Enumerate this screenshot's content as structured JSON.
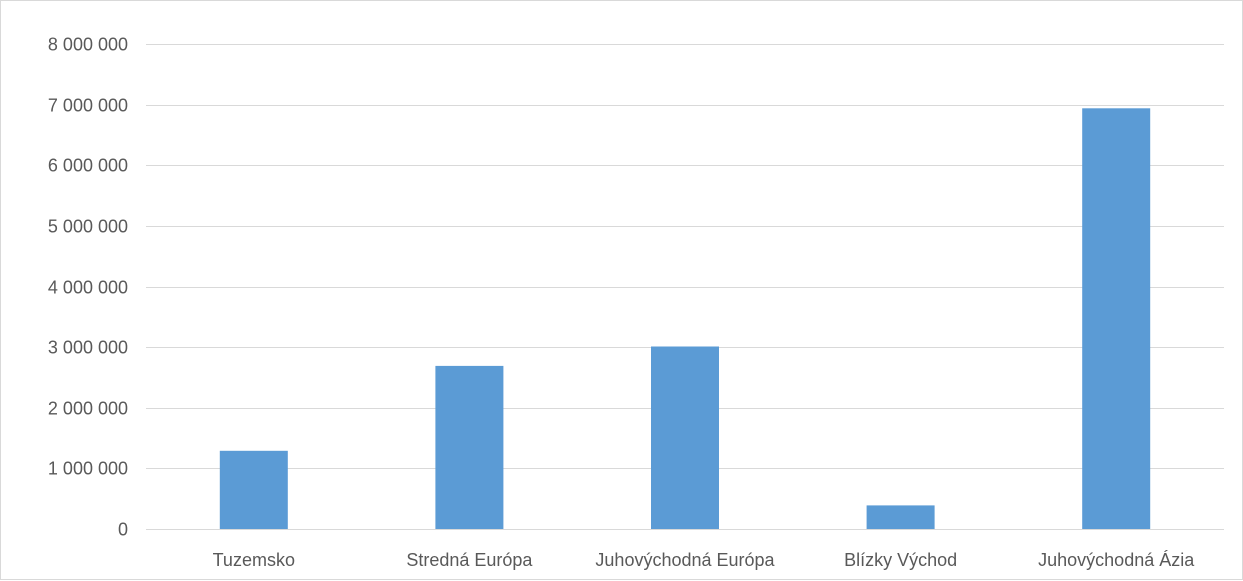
{
  "chart_data": {
    "type": "bar",
    "categories": [
      "Tuzemsko",
      "Stredná Európa",
      "Juhovýchodná Európa",
      "Blízky Východ",
      "Juhovýchodná Ázia"
    ],
    "values": [
      1290000,
      2690000,
      3010000,
      390000,
      6940000
    ],
    "title": "",
    "xlabel": "",
    "ylabel": "",
    "ylim": [
      0,
      8000000
    ],
    "yticks": [
      0,
      1000000,
      2000000,
      3000000,
      4000000,
      5000000,
      6000000,
      7000000,
      8000000
    ],
    "ytick_labels": [
      "0",
      "1 000 000",
      "2 000 000",
      "3 000 000",
      "4 000 000",
      "5 000 000",
      "6 000 000",
      "7 000 000",
      "8 000 000"
    ],
    "grid": true,
    "legend": "none",
    "bar_color": "#5b9bd5",
    "grid_color": "#d9d9d9",
    "text_color": "#595959"
  }
}
